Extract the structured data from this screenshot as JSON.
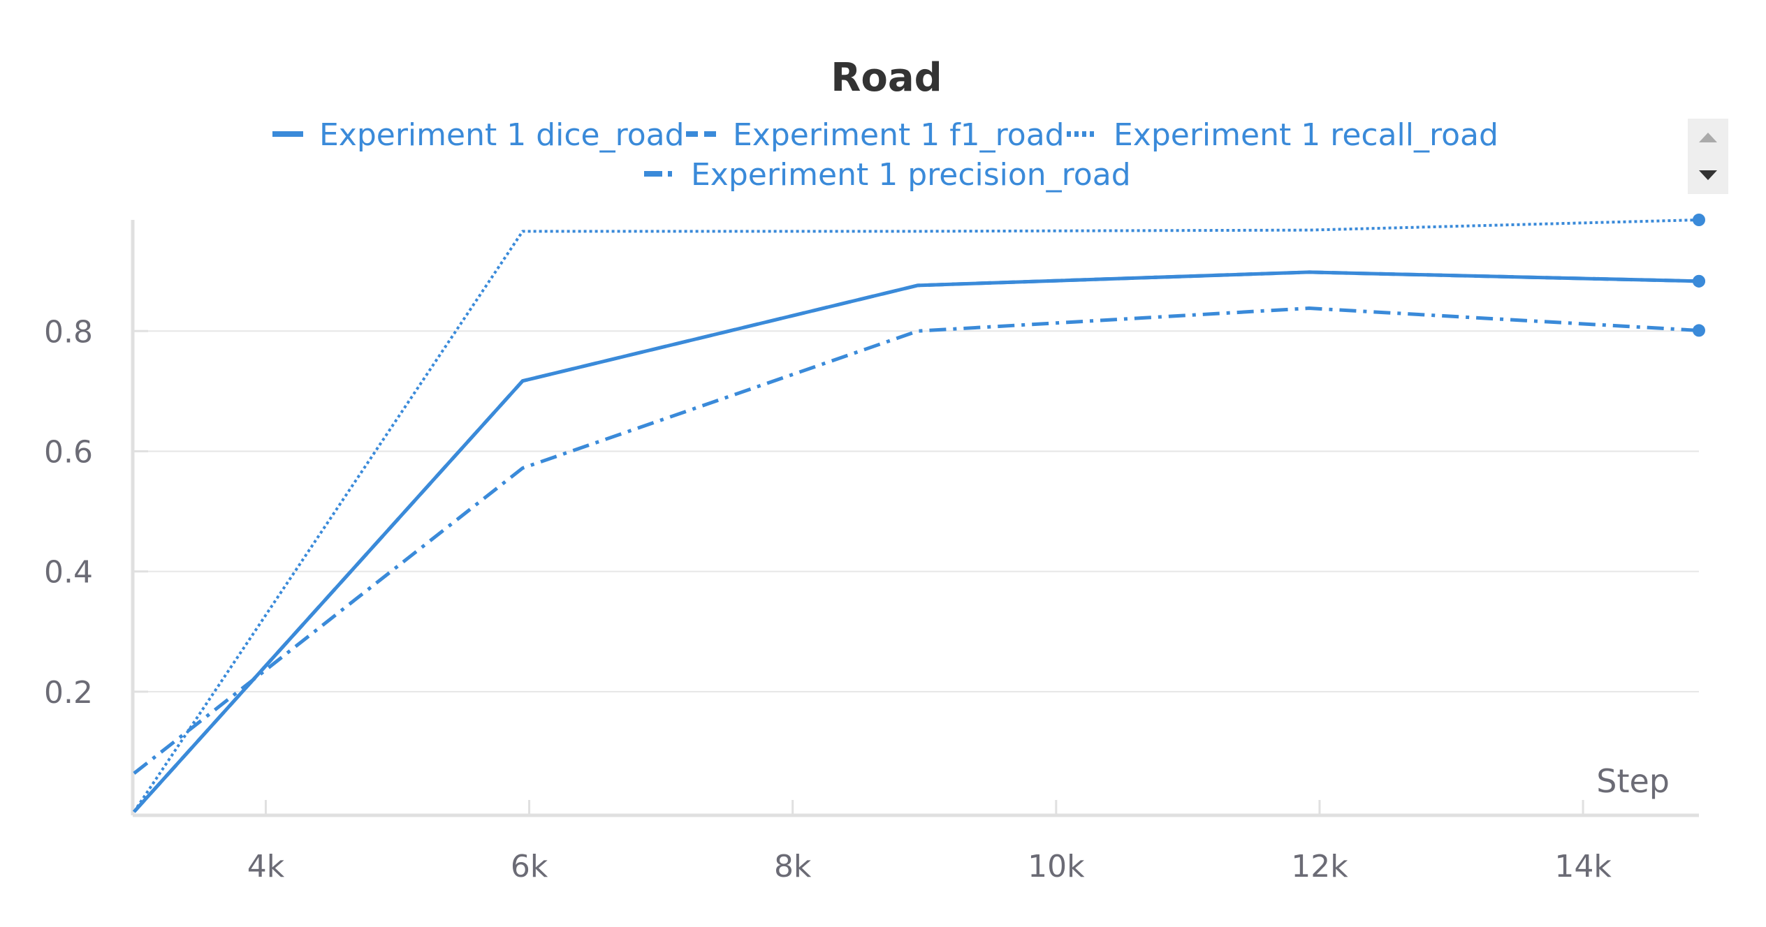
{
  "colors": {
    "series": "#3a8ad9",
    "grid": "#e6e6e6",
    "axis": "#e0e0e0",
    "tick_text": "#6b6b75",
    "title": "#333333",
    "scroll_bg": "#eeeeee",
    "scroll_up_arrow": "#aaaaaa",
    "scroll_down_arrow": "#333333"
  },
  "icons": {
    "scroll_up": "triangle-up-icon",
    "scroll_down": "triangle-down-icon"
  },
  "chart_data": {
    "type": "line",
    "title": "Road",
    "xlabel": "Step",
    "ylabel": "",
    "xlim": [
      2990,
      14880
    ],
    "ylim": [
      0,
      0.985
    ],
    "x_ticks": [
      4000,
      6000,
      8000,
      10000,
      12000,
      14000
    ],
    "x_tick_labels": [
      "4k",
      "6k",
      "8k",
      "10k",
      "12k",
      "14k"
    ],
    "y_ticks": [
      0.2,
      0.4,
      0.6,
      0.8
    ],
    "y_tick_labels": [
      "0.2",
      "0.4",
      "0.6",
      "0.8"
    ],
    "grid": "horizontal",
    "legend_position": "top-center",
    "series": [
      {
        "name": "Experiment 1 dice_road",
        "style": "solid",
        "x": [
          3000,
          5950,
          8950,
          11920,
          14880
        ],
        "y": [
          0.0,
          0.717,
          0.876,
          0.898,
          0.883
        ]
      },
      {
        "name": "Experiment 1 f1_road",
        "style": "dashed",
        "x": [
          3000,
          5950,
          8950,
          11920,
          14880
        ],
        "y": [
          0.0,
          0.717,
          0.876,
          0.898,
          0.883
        ]
      },
      {
        "name": "Experiment 1 recall_road",
        "style": "dotted",
        "x": [
          3000,
          5950,
          8950,
          11920,
          14880
        ],
        "y": [
          0.0,
          0.966,
          0.966,
          0.968,
          0.985
        ]
      },
      {
        "name": "Experiment 1 precision_road",
        "style": "dashdot",
        "x": [
          3000,
          5950,
          8950,
          11920,
          14880
        ],
        "y": [
          0.064,
          0.572,
          0.8,
          0.838,
          0.801
        ]
      }
    ]
  }
}
